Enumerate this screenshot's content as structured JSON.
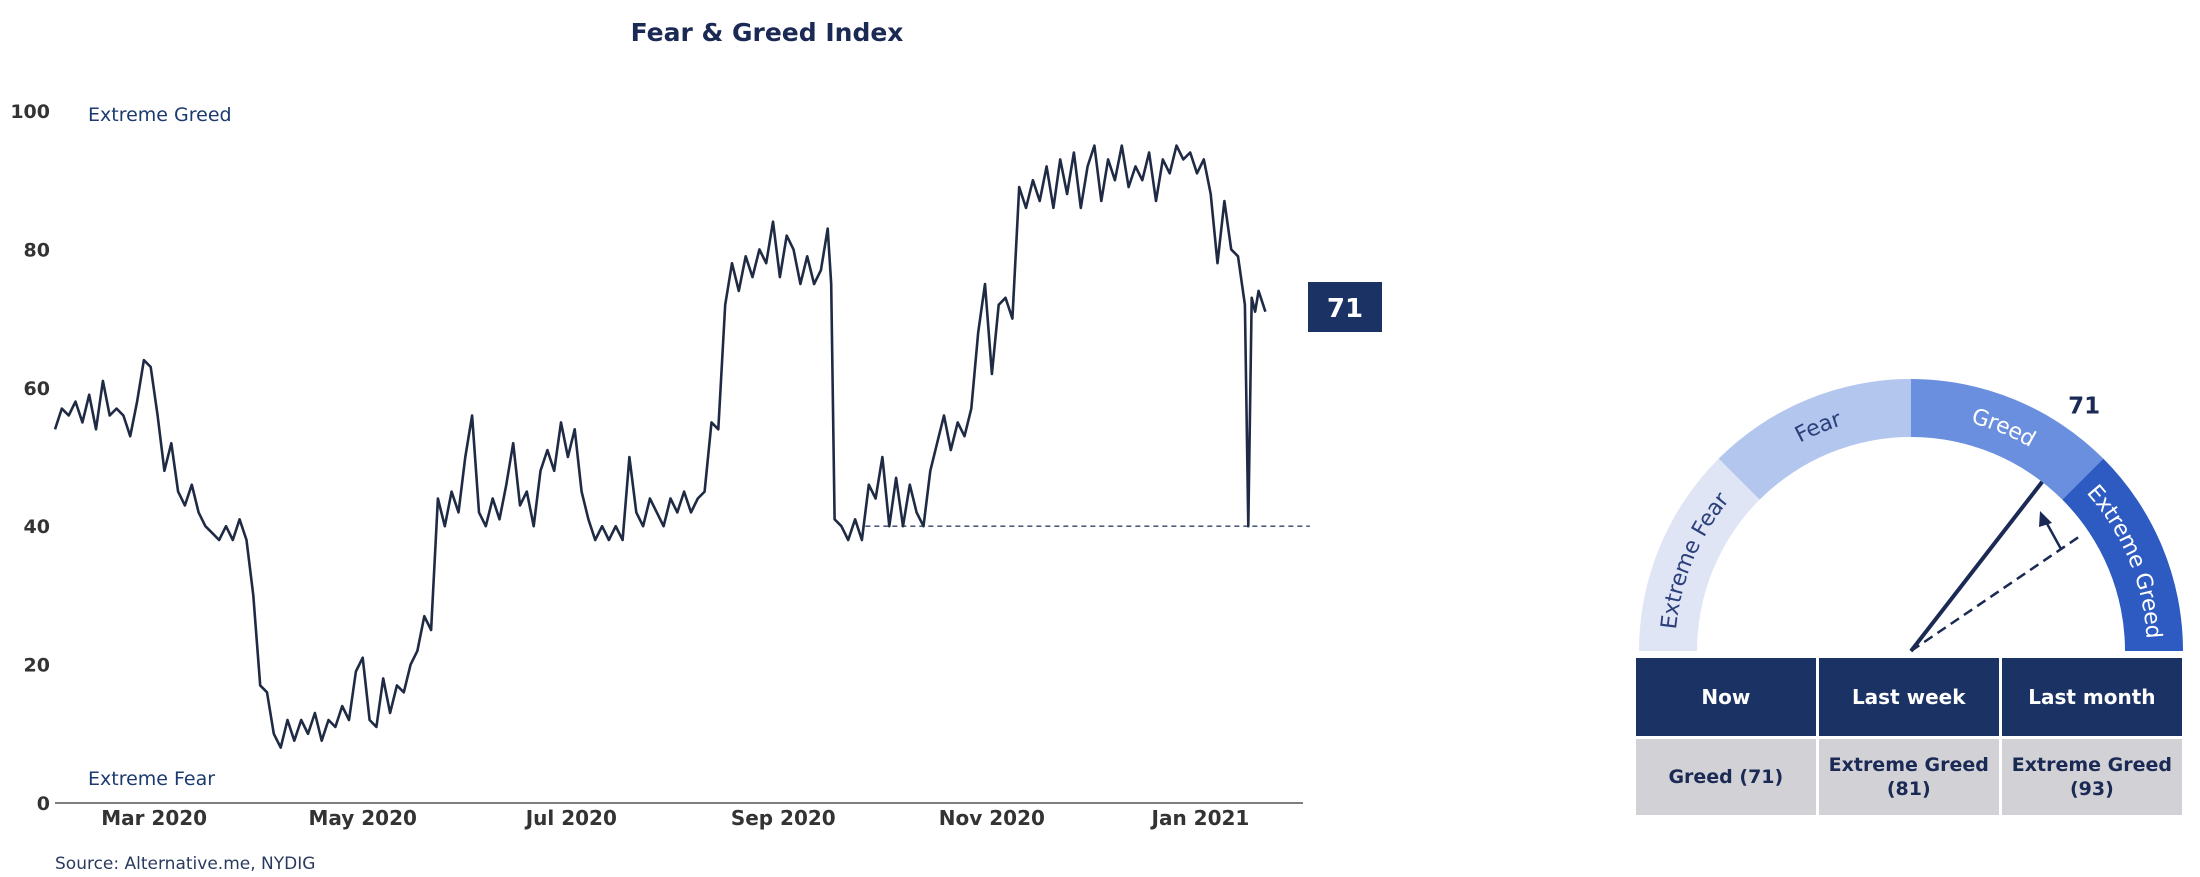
{
  "chart_data": {
    "type": "line",
    "title": "Fear & Greed Index",
    "source": "Source: Alternative.me, NYDIG",
    "ylim": [
      0,
      100
    ],
    "yticks": [
      0,
      20,
      40,
      60,
      80,
      100
    ],
    "xticks": [
      {
        "label": "Mar 2020",
        "date": "2020-03-01"
      },
      {
        "label": "May 2020",
        "date": "2020-05-01"
      },
      {
        "label": "Jul 2020",
        "date": "2020-07-01"
      },
      {
        "label": "Sep 2020",
        "date": "2020-09-01"
      },
      {
        "label": "Nov 2020",
        "date": "2020-11-01"
      },
      {
        "label": "Jan 2021",
        "date": "2021-01-01"
      }
    ],
    "zone_labels": {
      "top": "Extreme Greed",
      "bottom": "Extreme Fear"
    },
    "current_value": "71",
    "reference_line": {
      "from": {
        "date": "2020-09-25",
        "value": 40
      },
      "to": {
        "date": "2021-02-02",
        "value": 40
      }
    },
    "series": [
      {
        "line_color": "#1f2a44",
        "points": [
          [
            "2020-02-01",
            54
          ],
          [
            "2020-02-03",
            57
          ],
          [
            "2020-02-05",
            56
          ],
          [
            "2020-02-07",
            58
          ],
          [
            "2020-02-09",
            55
          ],
          [
            "2020-02-11",
            59
          ],
          [
            "2020-02-13",
            54
          ],
          [
            "2020-02-15",
            61
          ],
          [
            "2020-02-17",
            56
          ],
          [
            "2020-02-19",
            57
          ],
          [
            "2020-02-21",
            56
          ],
          [
            "2020-02-23",
            53
          ],
          [
            "2020-02-25",
            58
          ],
          [
            "2020-02-27",
            64
          ],
          [
            "2020-02-29",
            63
          ],
          [
            "2020-03-02",
            56
          ],
          [
            "2020-03-04",
            48
          ],
          [
            "2020-03-06",
            52
          ],
          [
            "2020-03-08",
            45
          ],
          [
            "2020-03-10",
            43
          ],
          [
            "2020-03-12",
            46
          ],
          [
            "2020-03-14",
            42
          ],
          [
            "2020-03-16",
            40
          ],
          [
            "2020-03-18",
            39
          ],
          [
            "2020-03-20",
            38
          ],
          [
            "2020-03-22",
            40
          ],
          [
            "2020-03-24",
            38
          ],
          [
            "2020-03-26",
            41
          ],
          [
            "2020-03-28",
            38
          ],
          [
            "2020-03-30",
            30
          ],
          [
            "2020-04-01",
            17
          ],
          [
            "2020-04-03",
            16
          ],
          [
            "2020-04-05",
            10
          ],
          [
            "2020-04-07",
            8
          ],
          [
            "2020-04-09",
            12
          ],
          [
            "2020-04-11",
            9
          ],
          [
            "2020-04-13",
            12
          ],
          [
            "2020-04-15",
            10
          ],
          [
            "2020-04-17",
            13
          ],
          [
            "2020-04-19",
            9
          ],
          [
            "2020-04-21",
            12
          ],
          [
            "2020-04-23",
            11
          ],
          [
            "2020-04-25",
            14
          ],
          [
            "2020-04-27",
            12
          ],
          [
            "2020-04-29",
            19
          ],
          [
            "2020-05-01",
            21
          ],
          [
            "2020-05-03",
            12
          ],
          [
            "2020-05-05",
            11
          ],
          [
            "2020-05-07",
            18
          ],
          [
            "2020-05-09",
            13
          ],
          [
            "2020-05-11",
            17
          ],
          [
            "2020-05-13",
            16
          ],
          [
            "2020-05-15",
            20
          ],
          [
            "2020-05-17",
            22
          ],
          [
            "2020-05-19",
            27
          ],
          [
            "2020-05-21",
            25
          ],
          [
            "2020-05-23",
            44
          ],
          [
            "2020-05-25",
            40
          ],
          [
            "2020-05-27",
            45
          ],
          [
            "2020-05-29",
            42
          ],
          [
            "2020-05-31",
            50
          ],
          [
            "2020-06-02",
            56
          ],
          [
            "2020-06-04",
            42
          ],
          [
            "2020-06-06",
            40
          ],
          [
            "2020-06-08",
            44
          ],
          [
            "2020-06-10",
            41
          ],
          [
            "2020-06-12",
            46
          ],
          [
            "2020-06-14",
            52
          ],
          [
            "2020-06-16",
            43
          ],
          [
            "2020-06-18",
            45
          ],
          [
            "2020-06-20",
            40
          ],
          [
            "2020-06-22",
            48
          ],
          [
            "2020-06-24",
            51
          ],
          [
            "2020-06-26",
            48
          ],
          [
            "2020-06-28",
            55
          ],
          [
            "2020-06-30",
            50
          ],
          [
            "2020-07-02",
            54
          ],
          [
            "2020-07-04",
            45
          ],
          [
            "2020-07-06",
            41
          ],
          [
            "2020-07-08",
            38
          ],
          [
            "2020-07-10",
            40
          ],
          [
            "2020-07-12",
            38
          ],
          [
            "2020-07-14",
            40
          ],
          [
            "2020-07-16",
            38
          ],
          [
            "2020-07-18",
            50
          ],
          [
            "2020-07-20",
            42
          ],
          [
            "2020-07-22",
            40
          ],
          [
            "2020-07-24",
            44
          ],
          [
            "2020-07-26",
            42
          ],
          [
            "2020-07-28",
            40
          ],
          [
            "2020-07-30",
            44
          ],
          [
            "2020-08-01",
            42
          ],
          [
            "2020-08-03",
            45
          ],
          [
            "2020-08-05",
            42
          ],
          [
            "2020-08-07",
            44
          ],
          [
            "2020-08-09",
            45
          ],
          [
            "2020-08-11",
            55
          ],
          [
            "2020-08-13",
            54
          ],
          [
            "2020-08-15",
            72
          ],
          [
            "2020-08-17",
            78
          ],
          [
            "2020-08-19",
            74
          ],
          [
            "2020-08-21",
            79
          ],
          [
            "2020-08-23",
            76
          ],
          [
            "2020-08-25",
            80
          ],
          [
            "2020-08-27",
            78
          ],
          [
            "2020-08-29",
            84
          ],
          [
            "2020-08-31",
            76
          ],
          [
            "2020-09-02",
            82
          ],
          [
            "2020-09-04",
            80
          ],
          [
            "2020-09-06",
            75
          ],
          [
            "2020-09-08",
            79
          ],
          [
            "2020-09-10",
            75
          ],
          [
            "2020-09-12",
            77
          ],
          [
            "2020-09-14",
            83
          ],
          [
            "2020-09-15",
            75
          ],
          [
            "2020-09-16",
            41
          ],
          [
            "2020-09-18",
            40
          ],
          [
            "2020-09-20",
            38
          ],
          [
            "2020-09-22",
            41
          ],
          [
            "2020-09-24",
            38
          ],
          [
            "2020-09-26",
            46
          ],
          [
            "2020-09-28",
            44
          ],
          [
            "2020-09-30",
            50
          ],
          [
            "2020-10-02",
            40
          ],
          [
            "2020-10-04",
            47
          ],
          [
            "2020-10-06",
            40
          ],
          [
            "2020-10-08",
            46
          ],
          [
            "2020-10-10",
            42
          ],
          [
            "2020-10-12",
            40
          ],
          [
            "2020-10-14",
            48
          ],
          [
            "2020-10-16",
            52
          ],
          [
            "2020-10-18",
            56
          ],
          [
            "2020-10-20",
            51
          ],
          [
            "2020-10-22",
            55
          ],
          [
            "2020-10-24",
            53
          ],
          [
            "2020-10-26",
            57
          ],
          [
            "2020-10-28",
            68
          ],
          [
            "2020-10-30",
            75
          ],
          [
            "2020-11-01",
            62
          ],
          [
            "2020-11-03",
            72
          ],
          [
            "2020-11-05",
            73
          ],
          [
            "2020-11-07",
            70
          ],
          [
            "2020-11-09",
            89
          ],
          [
            "2020-11-11",
            86
          ],
          [
            "2020-11-13",
            90
          ],
          [
            "2020-11-15",
            87
          ],
          [
            "2020-11-17",
            92
          ],
          [
            "2020-11-19",
            86
          ],
          [
            "2020-11-21",
            93
          ],
          [
            "2020-11-23",
            88
          ],
          [
            "2020-11-25",
            94
          ],
          [
            "2020-11-27",
            86
          ],
          [
            "2020-11-29",
            92
          ],
          [
            "2020-12-01",
            95
          ],
          [
            "2020-12-03",
            87
          ],
          [
            "2020-12-05",
            93
          ],
          [
            "2020-12-07",
            90
          ],
          [
            "2020-12-09",
            95
          ],
          [
            "2020-12-11",
            89
          ],
          [
            "2020-12-13",
            92
          ],
          [
            "2020-12-15",
            90
          ],
          [
            "2020-12-17",
            94
          ],
          [
            "2020-12-19",
            87
          ],
          [
            "2020-12-21",
            93
          ],
          [
            "2020-12-23",
            91
          ],
          [
            "2020-12-25",
            95
          ],
          [
            "2020-12-27",
            93
          ],
          [
            "2020-12-29",
            94
          ],
          [
            "2020-12-31",
            91
          ],
          [
            "2021-01-02",
            93
          ],
          [
            "2021-01-04",
            88
          ],
          [
            "2021-01-06",
            78
          ],
          [
            "2021-01-08",
            87
          ],
          [
            "2021-01-10",
            80
          ],
          [
            "2021-01-12",
            79
          ],
          [
            "2021-01-14",
            72
          ],
          [
            "2021-01-15",
            40
          ],
          [
            "2021-01-16",
            73
          ],
          [
            "2021-01-17",
            71
          ],
          [
            "2021-01-18",
            74
          ],
          [
            "2021-01-20",
            71
          ]
        ]
      }
    ]
  },
  "gauge": {
    "segments": [
      {
        "label": "Extreme Fear",
        "color": "#dfe5f5"
      },
      {
        "label": "Fear",
        "color": "#b3c6ee"
      },
      {
        "label": "Greed",
        "color": "#6a8fde"
      },
      {
        "label": "Extreme Greed",
        "color": "#2e5bc2"
      }
    ],
    "value": 71,
    "value_label": "71",
    "previous_value": 81
  },
  "table": {
    "headers": [
      "Now",
      "Last week",
      "Last month"
    ],
    "values": [
      [
        "Greed (71)"
      ],
      [
        "Extreme Greed",
        "(81)"
      ],
      [
        "Extreme Greed",
        "(93)"
      ]
    ]
  }
}
